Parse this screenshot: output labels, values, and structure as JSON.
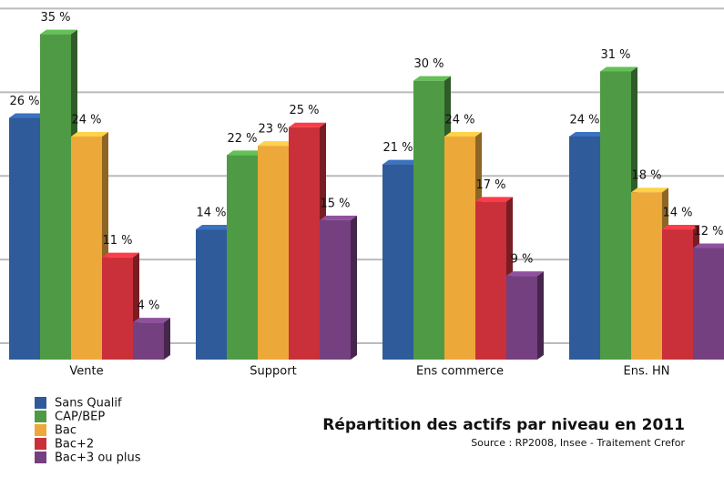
{
  "chart_data": {
    "type": "bar3d",
    "title": "Répartition des actifs  par niveau en 2011",
    "subtitle": "Source : RP2008, Insee  -  Traitement Crefor",
    "categories": [
      "Vente",
      "Support",
      "Ens commerce",
      "Ens. HN"
    ],
    "series": [
      {
        "name": "Sans Qualif",
        "color": "#2f5b9a",
        "values": [
          26,
          14,
          21,
          24
        ],
        "value_labels": [
          "26 %",
          "14 %",
          "21 %",
          "24 %"
        ]
      },
      {
        "name": "CAP/BEP",
        "color": "#4f9a45",
        "values": [
          35,
          22,
          30,
          31
        ],
        "value_labels": [
          "35 %",
          "22 %",
          "30 %",
          "31 %"
        ]
      },
      {
        "name": "Bac",
        "color": "#eda83a",
        "values": [
          24,
          23,
          24,
          18
        ],
        "value_labels": [
          "24 %",
          "23 %",
          "24 %",
          "18 %"
        ]
      },
      {
        "name": "Bac+2",
        "color": "#c9303a",
        "values": [
          11,
          25,
          17,
          14
        ],
        "value_labels": [
          "11 %",
          "25 %",
          "17 %",
          "14 %"
        ]
      },
      {
        "name": "Bac+3 ou plus",
        "color": "#74407f",
        "values": [
          4,
          15,
          9,
          12
        ],
        "value_labels": [
          "4 %",
          "15 %",
          "9 %",
          "12 %"
        ]
      }
    ],
    "ylim": [
      0,
      38
    ],
    "yticks": [
      0,
      9,
      18,
      27,
      36
    ],
    "grid": true,
    "legend": "bottom-left"
  }
}
